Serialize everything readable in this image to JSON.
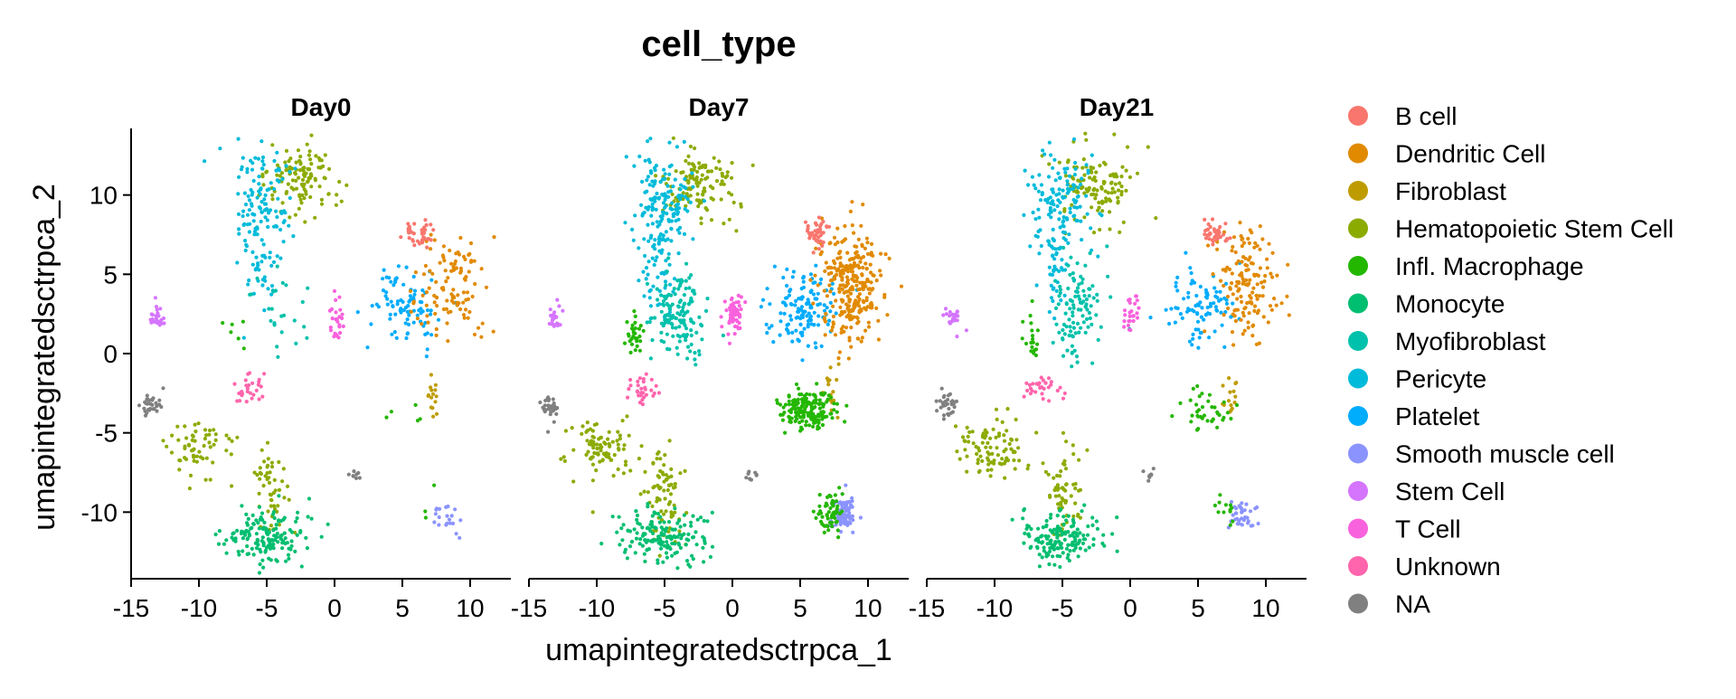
{
  "chart_data": {
    "type": "scatter",
    "title": "cell_type",
    "xlabel": "umapintegratedsctrpca_1",
    "ylabel": "umapintegratedsctrpca_2",
    "xlim": [
      -15,
      13
    ],
    "ylim": [
      -14.2,
      14.2
    ],
    "x_ticks": [
      -15,
      -10,
      -5,
      0,
      5,
      10
    ],
    "y_ticks": [
      -10,
      -5,
      0,
      5,
      10
    ],
    "grid": false,
    "legend_position": "right",
    "panels": [
      {
        "name": "Day0",
        "density": 1
      },
      {
        "name": "Day7",
        "density": 3
      },
      {
        "name": "Day21",
        "density": 1.6
      }
    ],
    "categories": [
      {
        "name": "B cell",
        "color": "#F8766D"
      },
      {
        "name": "Dendritic Cell",
        "color": "#E18A00"
      },
      {
        "name": "Fibroblast",
        "color": "#BE9C00"
      },
      {
        "name": "Hematopoietic Stem Cell",
        "color": "#8CAB00"
      },
      {
        "name": "Infl. Macrophage",
        "color": "#24B700"
      },
      {
        "name": "Monocyte",
        "color": "#00BE70"
      },
      {
        "name": "Myofibroblast",
        "color": "#00C1AB"
      },
      {
        "name": "Pericyte",
        "color": "#00BBDA"
      },
      {
        "name": "Platelet",
        "color": "#00ACFC"
      },
      {
        "name": "Smooth muscle cell",
        "color": "#8B93FF"
      },
      {
        "name": "Stem Cell",
        "color": "#D575FE"
      },
      {
        "name": "T Cell",
        "color": "#F962DD"
      },
      {
        "name": "Unknown",
        "color": "#FF65AC"
      },
      {
        "name": "NA",
        "color": "#808080"
      }
    ],
    "clusters": [
      {
        "category": "Hematopoietic Stem Cell",
        "cx": -2.5,
        "cy": 10.8,
        "sx": 1.3,
        "sy": 1.2,
        "n": 120,
        "days": [
          1,
          1,
          1
        ]
      },
      {
        "category": "Pericyte",
        "cx": -5.2,
        "cy": 9.5,
        "sx": 1.1,
        "sy": 1.8,
        "n": 110,
        "days": [
          1,
          1.4,
          1.2
        ]
      },
      {
        "category": "Pericyte",
        "cx": -5.5,
        "cy": 5.5,
        "sx": 0.6,
        "sy": 1.5,
        "n": 40,
        "days": [
          1,
          1,
          1
        ]
      },
      {
        "category": "Myofibroblast",
        "cx": -4.0,
        "cy": 2.5,
        "sx": 1.0,
        "sy": 1.5,
        "n": 35,
        "days": [
          0.7,
          4,
          3
        ]
      },
      {
        "category": "Infl. Macrophage",
        "cx": -7.3,
        "cy": 1.0,
        "sx": 0.3,
        "sy": 0.8,
        "n": 10,
        "days": [
          0.6,
          3,
          2
        ]
      },
      {
        "category": "Unknown",
        "cx": -6.5,
        "cy": -2.3,
        "sx": 0.6,
        "sy": 0.5,
        "n": 30,
        "days": [
          1,
          1,
          1
        ]
      },
      {
        "category": "T Cell",
        "cx": 0.1,
        "cy": 2.5,
        "sx": 0.3,
        "sy": 0.7,
        "n": 25,
        "days": [
          1,
          2.5,
          1
        ]
      },
      {
        "category": "Stem Cell",
        "cx": -13.1,
        "cy": 2.2,
        "sx": 0.3,
        "sy": 0.4,
        "n": 25,
        "days": [
          1,
          1,
          1
        ]
      },
      {
        "category": "NA",
        "cx": -13.5,
        "cy": -3.3,
        "sx": 0.35,
        "sy": 0.4,
        "n": 30,
        "days": [
          1,
          1,
          1
        ]
      },
      {
        "category": "NA",
        "cx": 1.5,
        "cy": -7.7,
        "sx": 0.25,
        "sy": 0.15,
        "n": 8,
        "days": [
          1,
          1,
          1
        ]
      },
      {
        "category": "Hematopoietic Stem Cell",
        "cx": -9.8,
        "cy": -6.0,
        "sx": 1.3,
        "sy": 1.0,
        "n": 60,
        "days": [
          1,
          1.5,
          1.5
        ]
      },
      {
        "category": "Hematopoietic Stem Cell",
        "cx": -4.8,
        "cy": -8.5,
        "sx": 0.7,
        "sy": 1.5,
        "n": 50,
        "days": [
          1,
          1.5,
          1.2
        ]
      },
      {
        "category": "Monocyte",
        "cx": -5.2,
        "cy": -11.5,
        "sx": 1.5,
        "sy": 0.8,
        "n": 160,
        "days": [
          1,
          1,
          1
        ]
      },
      {
        "category": "Platelet",
        "cx": 5.2,
        "cy": 2.8,
        "sx": 1.2,
        "sy": 1.2,
        "n": 90,
        "days": [
          1,
          1.5,
          1
        ]
      },
      {
        "category": "Dendritic Cell",
        "cx": 8.8,
        "cy": 4.3,
        "sx": 1.2,
        "sy": 1.8,
        "n": 110,
        "days": [
          1,
          2.5,
          1.3
        ]
      },
      {
        "category": "B cell",
        "cx": 6.3,
        "cy": 7.6,
        "sx": 0.5,
        "sy": 0.4,
        "n": 40,
        "days": [
          1,
          1,
          1
        ]
      },
      {
        "category": "Fibroblast",
        "cx": 7.3,
        "cy": -2.5,
        "sx": 0.3,
        "sy": 1.0,
        "n": 15,
        "days": [
          1,
          1,
          1
        ]
      },
      {
        "category": "Infl. Macrophage",
        "cx": 5.5,
        "cy": -3.5,
        "sx": 1.0,
        "sy": 0.6,
        "n": 15,
        "days": [
          0.3,
          12,
          2.5
        ]
      },
      {
        "category": "Smooth muscle cell",
        "cx": 8.2,
        "cy": -10.2,
        "sx": 0.5,
        "sy": 0.5,
        "n": 20,
        "days": [
          1,
          4,
          2
        ]
      },
      {
        "category": "Infl. Macrophage",
        "cx": 7.2,
        "cy": -10.0,
        "sx": 0.5,
        "sy": 0.6,
        "n": 6,
        "days": [
          0.5,
          10,
          2
        ]
      }
    ]
  }
}
